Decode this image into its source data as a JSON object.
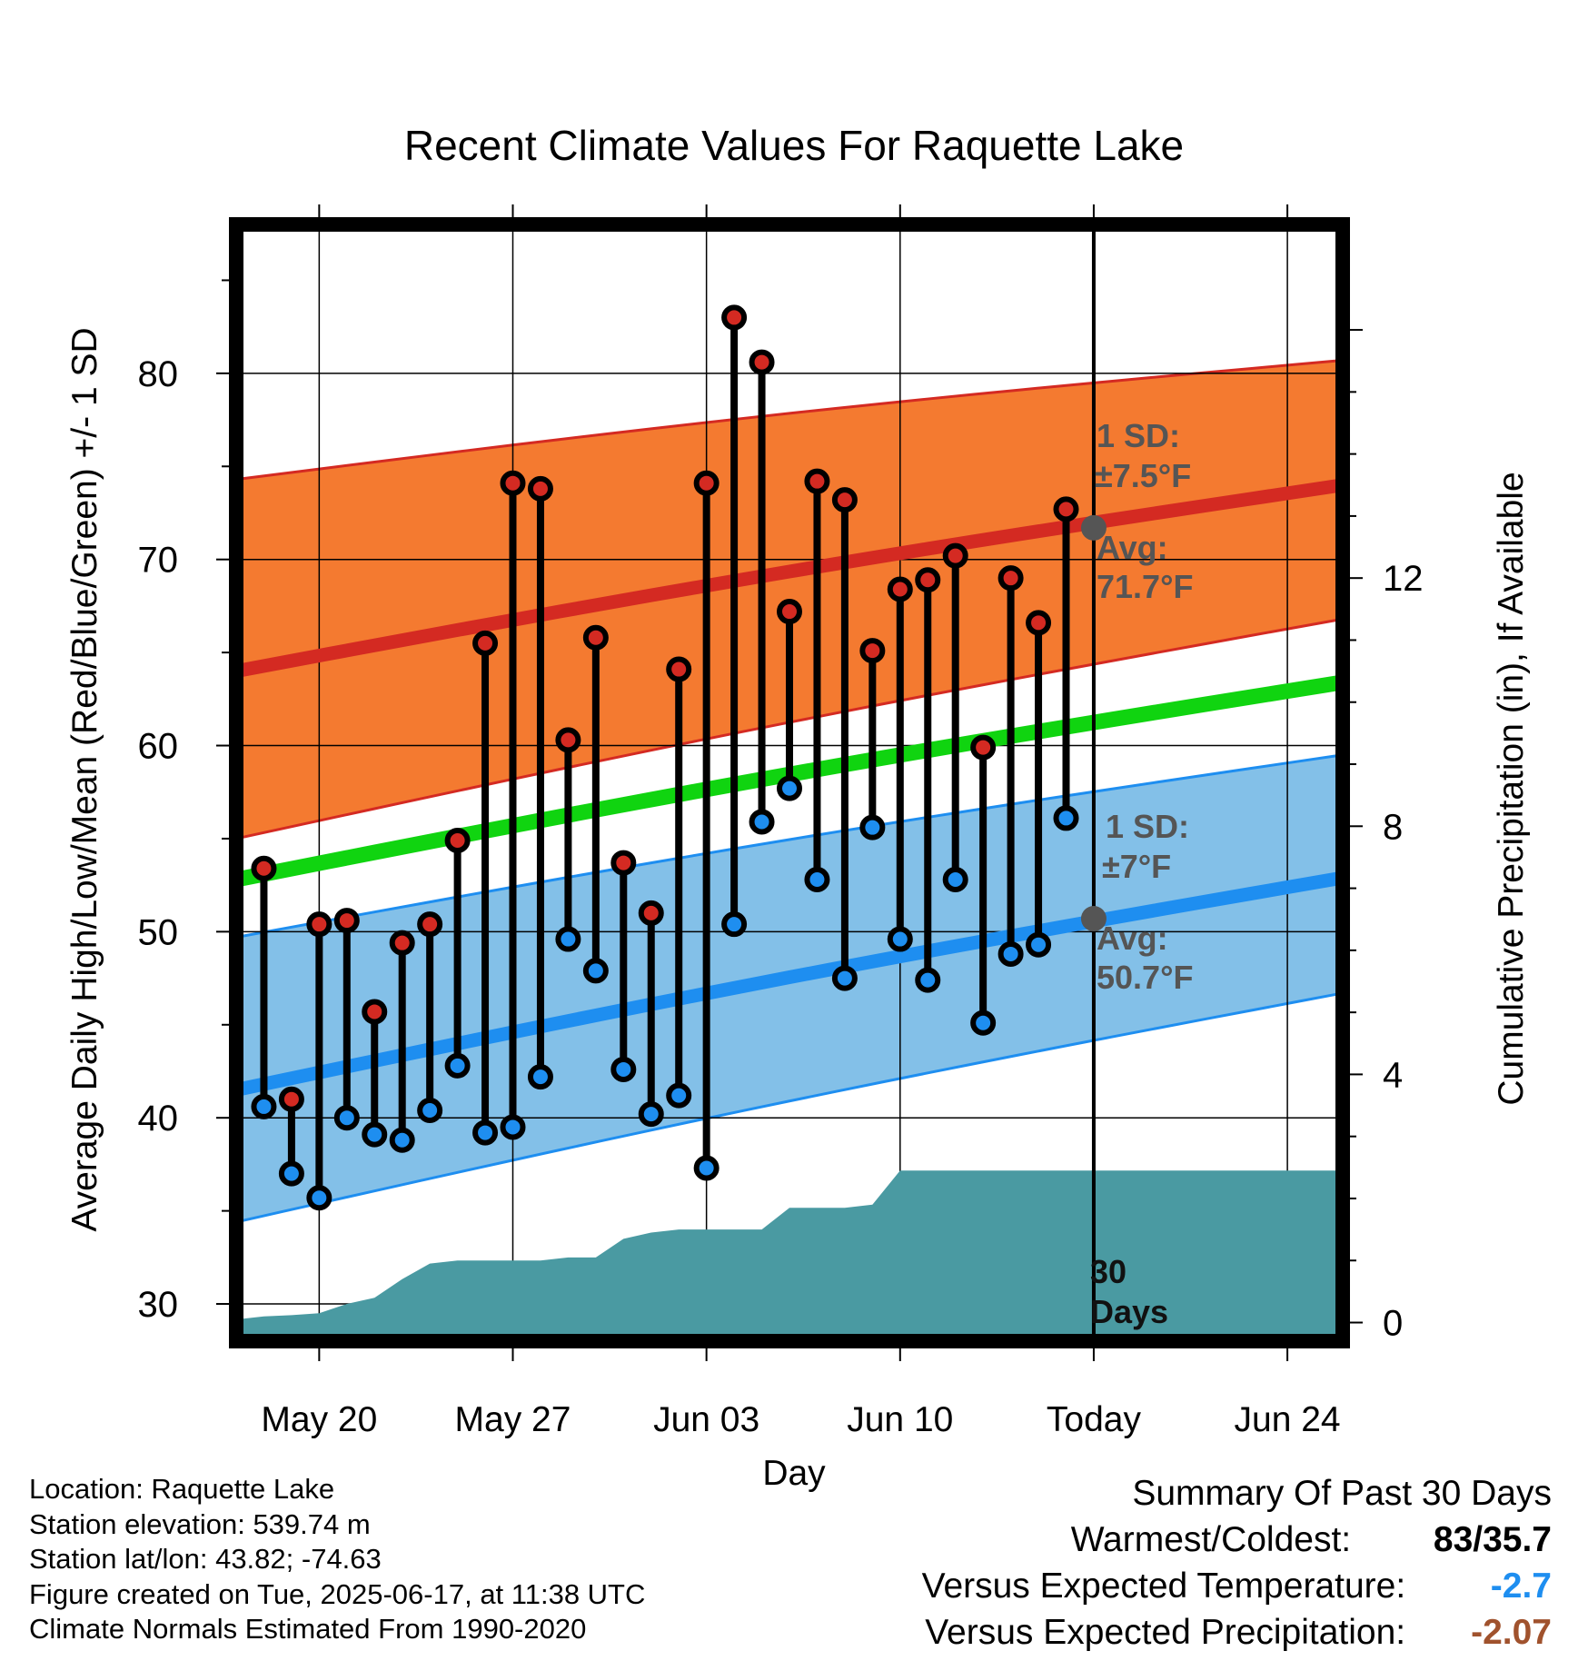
{
  "chart_data": {
    "type": "line",
    "title": "Recent Climate Values For Raquette Lake",
    "xlabel": "Day",
    "ylabel": "Average Daily High/Low/Mean (Red/Blue/Green) +/- 1 SD",
    "y2label": "Cumulative Precipitation (in), If Available",
    "ylim": [
      28,
      88
    ],
    "y2lim": [
      -0.3,
      17.7
    ],
    "yticks": [
      30,
      40,
      50,
      60,
      70,
      80
    ],
    "y2ticks": [
      0,
      4,
      8,
      12
    ],
    "xticks": [
      {
        "day": "2025-05-20",
        "label": "May 20"
      },
      {
        "day": "2025-05-27",
        "label": "May 27"
      },
      {
        "day": "2025-06-03",
        "label": "Jun 03"
      },
      {
        "day": "2025-06-10",
        "label": "Jun 10"
      },
      {
        "day": "2025-06-17",
        "label": "Today"
      },
      {
        "day": "2025-06-24",
        "label": "Jun 24"
      }
    ],
    "xlim": [
      "2025-05-17",
      "2025-06-26"
    ],
    "today": "2025-06-17",
    "colors": {
      "high_band": "#f47a30",
      "high_line": "#d42a22",
      "low_band": "#83c0e8",
      "low_line": "#1e8ef0",
      "mean_line": "#10d410",
      "precip": "#4a9aa2",
      "high_dot": "#d42a22",
      "low_dot": "#1e8ef0",
      "annotation": "#555555"
    },
    "normals": {
      "start_day": "2025-05-17",
      "end_day": "2025-06-26",
      "high_avg": [
        64.0,
        74.0
      ],
      "low_avg": [
        41.5,
        52.9
      ],
      "mean_avg": [
        52.8,
        63.4
      ],
      "high_band": [
        [
          55.0,
          74.3
        ],
        [
          66.8,
          80.7
        ]
      ],
      "low_band": [
        [
          34.4,
          49.7
        ],
        [
          46.7,
          59.5
        ]
      ]
    },
    "series": [
      {
        "name": "High",
        "x": [
          "2025-05-18",
          "2025-05-19",
          "2025-05-20",
          "2025-05-21",
          "2025-05-22",
          "2025-05-23",
          "2025-05-24",
          "2025-05-25",
          "2025-05-26",
          "2025-05-27",
          "2025-05-28",
          "2025-05-29",
          "2025-05-30",
          "2025-05-31",
          "2025-06-01",
          "2025-06-02",
          "2025-06-03",
          "2025-06-04",
          "2025-06-05",
          "2025-06-06",
          "2025-06-07",
          "2025-06-08",
          "2025-06-09",
          "2025-06-10",
          "2025-06-11",
          "2025-06-12",
          "2025-06-13",
          "2025-06-14",
          "2025-06-15",
          "2025-06-16"
        ],
        "values": [
          53.4,
          41.0,
          50.4,
          50.6,
          45.7,
          49.4,
          50.4,
          54.9,
          65.5,
          74.1,
          73.8,
          60.3,
          65.8,
          53.7,
          51.0,
          64.1,
          74.1,
          83.0,
          80.6,
          67.2,
          74.2,
          73.2,
          65.1,
          68.4,
          68.9,
          70.2,
          59.9,
          69.0,
          66.6,
          72.7
        ]
      },
      {
        "name": "Low",
        "x": [
          "2025-05-18",
          "2025-05-19",
          "2025-05-20",
          "2025-05-21",
          "2025-05-22",
          "2025-05-23",
          "2025-05-24",
          "2025-05-25",
          "2025-05-26",
          "2025-05-27",
          "2025-05-28",
          "2025-05-29",
          "2025-05-30",
          "2025-05-31",
          "2025-06-01",
          "2025-06-02",
          "2025-06-03",
          "2025-06-04",
          "2025-06-05",
          "2025-06-06",
          "2025-06-07",
          "2025-06-08",
          "2025-06-09",
          "2025-06-10",
          "2025-06-11",
          "2025-06-12",
          "2025-06-13",
          "2025-06-14",
          "2025-06-15",
          "2025-06-16"
        ],
        "values": [
          40.6,
          37.0,
          35.7,
          40.0,
          39.1,
          38.8,
          40.4,
          42.8,
          39.2,
          39.5,
          42.2,
          49.6,
          47.9,
          42.6,
          40.2,
          41.2,
          37.3,
          50.4,
          55.9,
          57.7,
          52.8,
          47.5,
          55.6,
          49.6,
          47.4,
          52.8,
          45.1,
          48.8,
          49.3,
          56.1
        ]
      }
    ],
    "precipitation": {
      "x": [
        "2025-05-17",
        "2025-05-18",
        "2025-05-19",
        "2025-05-20",
        "2025-05-21",
        "2025-05-22",
        "2025-05-23",
        "2025-05-24",
        "2025-05-25",
        "2025-05-26",
        "2025-05-27",
        "2025-05-28",
        "2025-05-29",
        "2025-05-30",
        "2025-05-31",
        "2025-06-01",
        "2025-06-02",
        "2025-06-03",
        "2025-06-04",
        "2025-06-05",
        "2025-06-06",
        "2025-06-07",
        "2025-06-08",
        "2025-06-09",
        "2025-06-10",
        "2025-06-11",
        "2025-06-17",
        "2025-06-26"
      ],
      "values": [
        0.05,
        0.1,
        0.12,
        0.15,
        0.3,
        0.4,
        0.7,
        0.95,
        1.0,
        1.0,
        1.0,
        1.0,
        1.05,
        1.05,
        1.35,
        1.45,
        1.5,
        1.5,
        1.5,
        1.5,
        1.85,
        1.85,
        1.85,
        1.9,
        2.45,
        2.45,
        2.45,
        2.45
      ]
    },
    "annotations": {
      "high_sd": "1 SD:",
      "high_sd_value": "±7.5°F",
      "high_avg_label": "Avg:",
      "high_avg_value": "71.7°F",
      "low_sd": "1 SD:",
      "low_sd_value": "±7°F",
      "low_avg_label": "Avg:",
      "low_avg_value": "50.7°F",
      "precip_window_1": "30",
      "precip_window_2": "Days"
    }
  },
  "info": {
    "location": "Location: Raquette Lake",
    "elevation": "Station elevation: 539.74 m",
    "latlon": "Station lat/lon: 43.82; -74.63",
    "created": "Figure created on Tue, 2025-06-17, at 11:38 UTC",
    "normals": "Climate Normals Estimated From 1990-2020"
  },
  "summary": {
    "title": "Summary Of Past 30 Days",
    "warmest_label": "Warmest/Coldest:",
    "warmest_value": "83/35.7",
    "temp_label": "Versus Expected Temperature:",
    "temp_value": "-2.7",
    "temp_color": "#1e8ef0",
    "precip_label": "Versus Expected Precipitation:",
    "precip_value": "-2.07",
    "precip_color": "#a0522d"
  }
}
